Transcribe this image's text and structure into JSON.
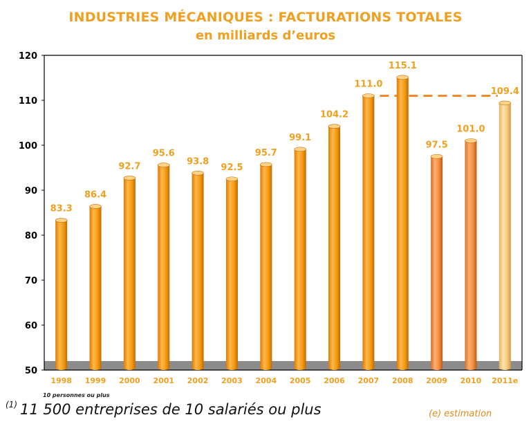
{
  "chart_data": {
    "type": "bar",
    "title": "INDUSTRIES MÉCANIQUES : FACTURATIONS TOTALES",
    "subtitle": "en milliards d’euros",
    "categories": [
      "1998",
      "1999",
      "2000",
      "2001",
      "2002",
      "2003",
      "2004",
      "2005",
      "2006",
      "2007",
      "2008",
      "2009",
      "2010",
      "2011e"
    ],
    "values": [
      83.3,
      86.4,
      92.7,
      95.6,
      93.8,
      92.5,
      95.7,
      99.1,
      104.2,
      111.0,
      115.1,
      97.5,
      101.0,
      109.4
    ],
    "value_labels": [
      "83.3",
      "86.4",
      "92.7",
      "95.6",
      "93.8",
      "92.5",
      "95.7",
      "99.1",
      "104.2",
      "111.0",
      "115.1",
      "97.5",
      "101.0",
      "109.4"
    ],
    "ylim": [
      50,
      120
    ],
    "yticks": [
      50,
      60,
      70,
      80,
      90,
      100,
      110,
      120
    ],
    "grid": false,
    "bar_colors": [
      "#f29a0e",
      "#f29a0e",
      "#f29a0e",
      "#f29a0e",
      "#f29a0e",
      "#f29a0e",
      "#f29a0e",
      "#f29a0e",
      "#f29a0e",
      "#f29a0e",
      "#f29a0e",
      "#f28e3a",
      "#f28e3a",
      "#f7c87a"
    ],
    "label_color": "#f0a020",
    "floor_color": "#8c8c8c",
    "dashed_reference": {
      "from": "2007",
      "to": "2011e",
      "value": 111.0,
      "color": "#f08a2a"
    }
  },
  "notes": {
    "small": "10 personnes ou plus",
    "footnote_marker": "(1)",
    "footnote": "11 500 entreprises de 10 salariés ou plus",
    "estimation": "(e) estimation"
  }
}
